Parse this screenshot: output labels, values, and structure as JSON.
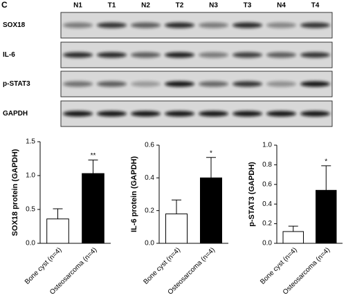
{
  "panel_label": "C",
  "blot": {
    "lanes": [
      "N1",
      "T1",
      "N2",
      "T2",
      "N3",
      "T3",
      "N4",
      "T4"
    ],
    "rows": [
      "SOX18",
      "IL-6",
      "p-STAT3",
      "GAPDH"
    ]
  },
  "chart_data": [
    {
      "type": "bar",
      "ylabel": "SOX18 protein (GAPDH)",
      "categories": [
        "Bone cyst (n=4)",
        "Osteosarcoma (n=4)"
      ],
      "values": [
        0.36,
        1.03
      ],
      "errors": [
        0.15,
        0.2
      ],
      "colors": [
        "#ffffff",
        "#000000"
      ],
      "annotation": "**",
      "ylim": [
        0,
        1.5
      ],
      "yticks": [
        {
          "value": 0,
          "label": "0.0"
        },
        0.5,
        {
          "value": 1,
          "label": "1.0"
        },
        1.5
      ]
    },
    {
      "type": "bar",
      "ylabel": "IL-6 protein (GAPDH)",
      "categories": [
        "Bone cyst (n=4)",
        "Osteosarcoma (n=4)"
      ],
      "values": [
        0.18,
        0.4
      ],
      "errors": [
        0.085,
        0.125
      ],
      "colors": [
        "#ffffff",
        "#000000"
      ],
      "annotation": "*",
      "ylim": [
        0,
        0.6
      ],
      "yticks": [
        {
          "value": 0,
          "label": "0.0"
        },
        0.2,
        0.4,
        0.6
      ]
    },
    {
      "type": "bar",
      "ylabel": "p-STAT3 (GAPDH)",
      "categories": [
        "Bone cyst (n=4)",
        "Osteosarcoma (n=4)"
      ],
      "values": [
        0.12,
        0.54
      ],
      "errors": [
        0.055,
        0.25
      ],
      "colors": [
        "#ffffff",
        "#000000"
      ],
      "annotation": "*",
      "ylim": [
        0,
        1
      ],
      "yticks": [
        {
          "value": 0,
          "label": "0.0"
        },
        0.2,
        0.4,
        0.6,
        0.8,
        {
          "value": 1,
          "label": "1.0"
        }
      ]
    }
  ]
}
